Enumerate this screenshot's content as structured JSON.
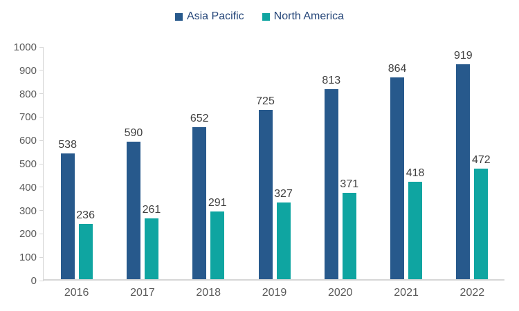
{
  "legend": {
    "items": [
      {
        "label": "Asia Pacific",
        "color": "#27598C"
      },
      {
        "label": "North America",
        "color": "#0FA5A1"
      }
    ]
  },
  "chart_data": {
    "type": "bar",
    "title": "",
    "xlabel": "",
    "ylabel": "",
    "categories": [
      "2016",
      "2017",
      "2018",
      "2019",
      "2020",
      "2021",
      "2022"
    ],
    "series": [
      {
        "name": "Asia Pacific",
        "color": "#27598C",
        "values": [
          538,
          590,
          652,
          725,
          813,
          864,
          919
        ]
      },
      {
        "name": "North America",
        "color": "#0FA5A1",
        "values": [
          236,
          261,
          291,
          327,
          371,
          418,
          472
        ]
      }
    ],
    "ylim": [
      0,
      1000
    ],
    "yticks": [
      0,
      100,
      200,
      300,
      400,
      500,
      600,
      700,
      800,
      900,
      1000
    ],
    "grid": false,
    "legend_position": "top-center",
    "data_labels": true
  },
  "colors": {
    "axis_line": "#d6d6d6",
    "axis_text": "#595959",
    "data_label_text": "#404040",
    "legend_text": "#254679",
    "background": "#ffffff"
  }
}
